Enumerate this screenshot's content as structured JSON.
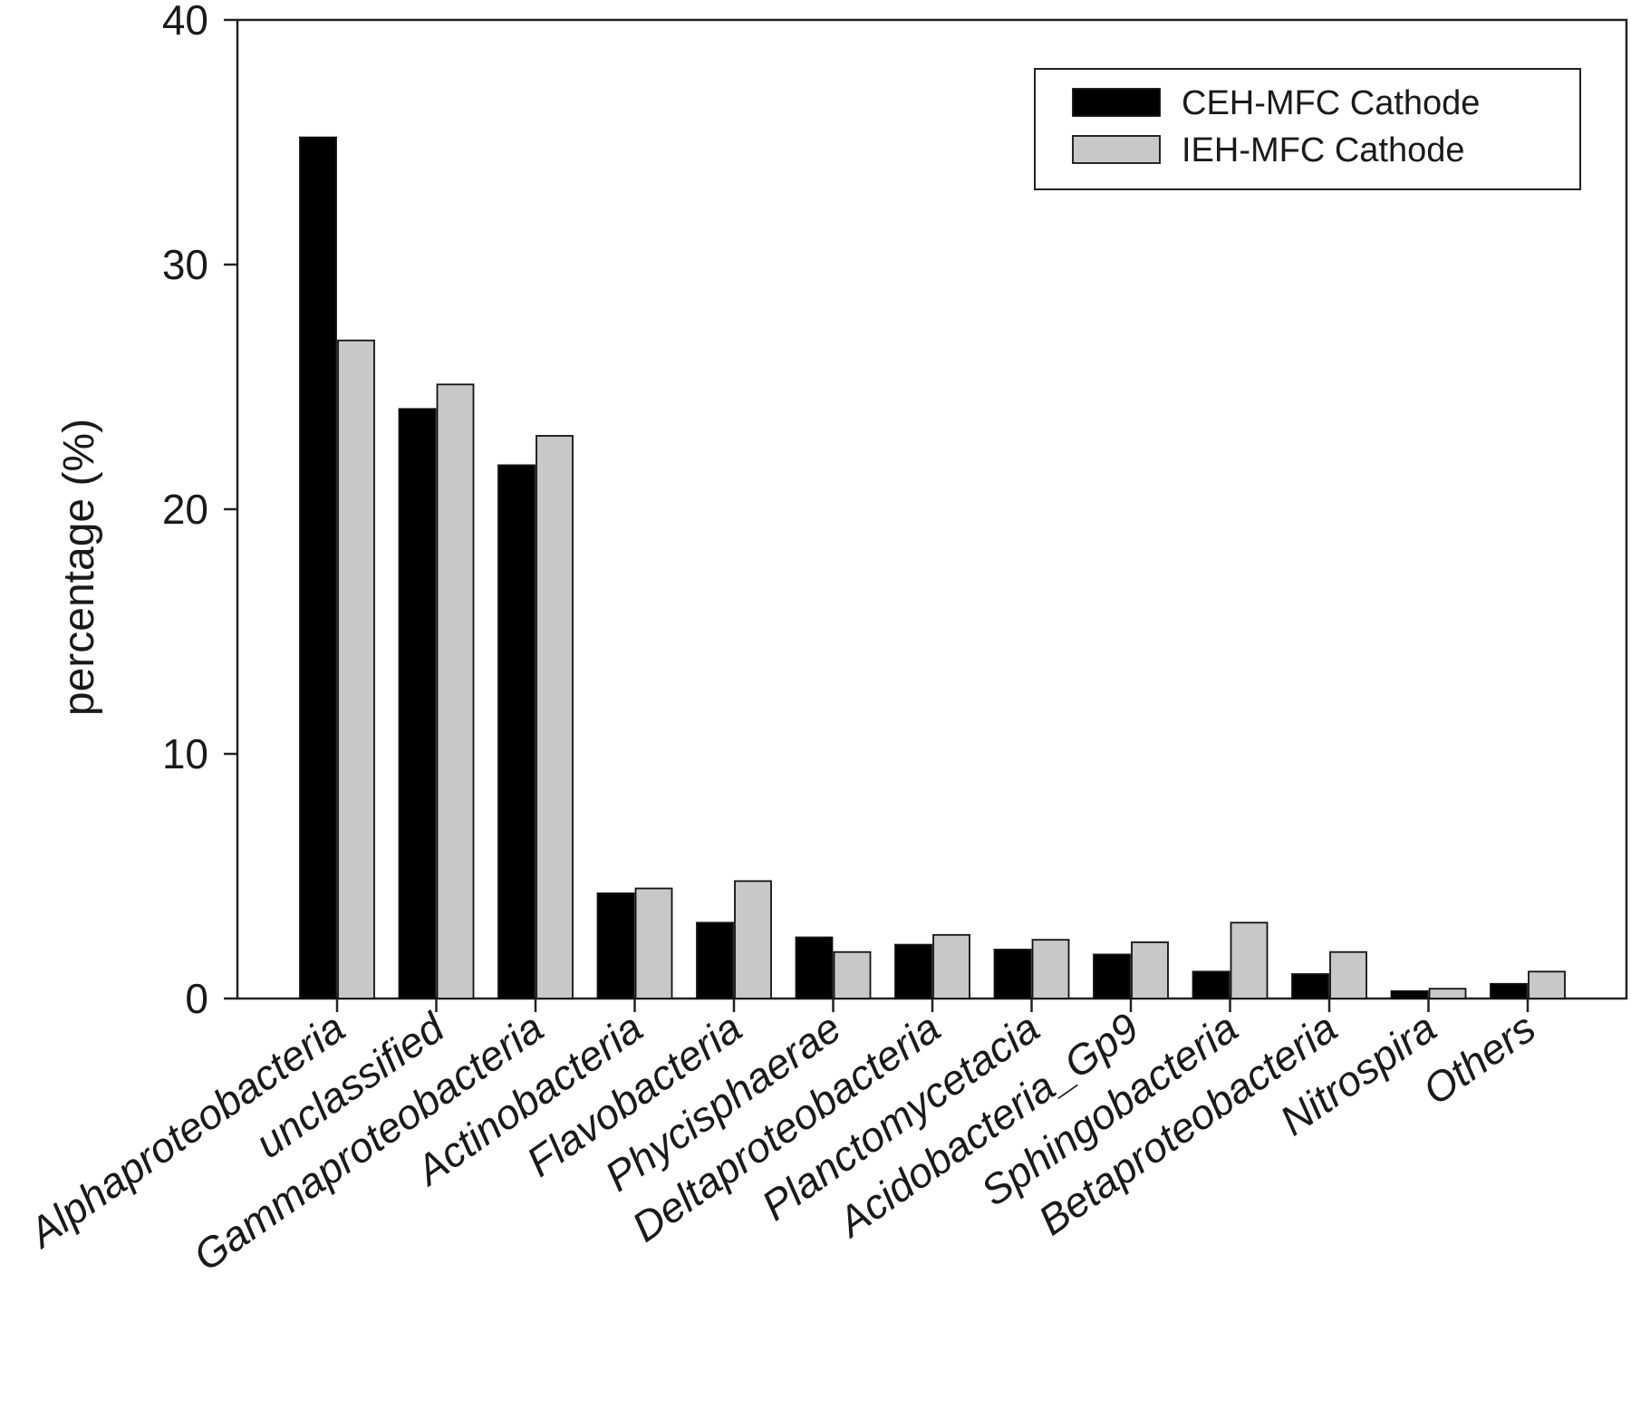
{
  "chart_data": {
    "type": "bar",
    "ylabel": "percentage (%)",
    "xlabel": "",
    "ylim": [
      0,
      40
    ],
    "yticks": [
      0,
      10,
      20,
      30,
      40
    ],
    "grid": false,
    "legend_position": "top-right",
    "categories": [
      "Alphaproteobacteria",
      "unclassified",
      "Gammaproteobacteria",
      "Actinobacteria",
      "Flavobacteria",
      "Phycisphaerae",
      "Deltaproteobacteria",
      "Planctomycetacia",
      "Acidobacteria_Gp9",
      "Sphingobacteria",
      "Betaproteobacteria",
      "Nitrospira",
      "Others"
    ],
    "series": [
      {
        "name": "CEH-MFC Cathode",
        "color": "#000000",
        "values": [
          35.2,
          24.1,
          21.8,
          4.3,
          3.1,
          2.5,
          2.2,
          2.0,
          1.8,
          1.1,
          1.0,
          0.3,
          0.6
        ]
      },
      {
        "name": "IEH-MFC Cathode",
        "color": "#c8c8c8",
        "values": [
          26.9,
          25.1,
          23.0,
          4.5,
          4.8,
          1.9,
          2.6,
          2.4,
          2.3,
          3.1,
          1.9,
          0.4,
          1.1
        ]
      }
    ]
  }
}
